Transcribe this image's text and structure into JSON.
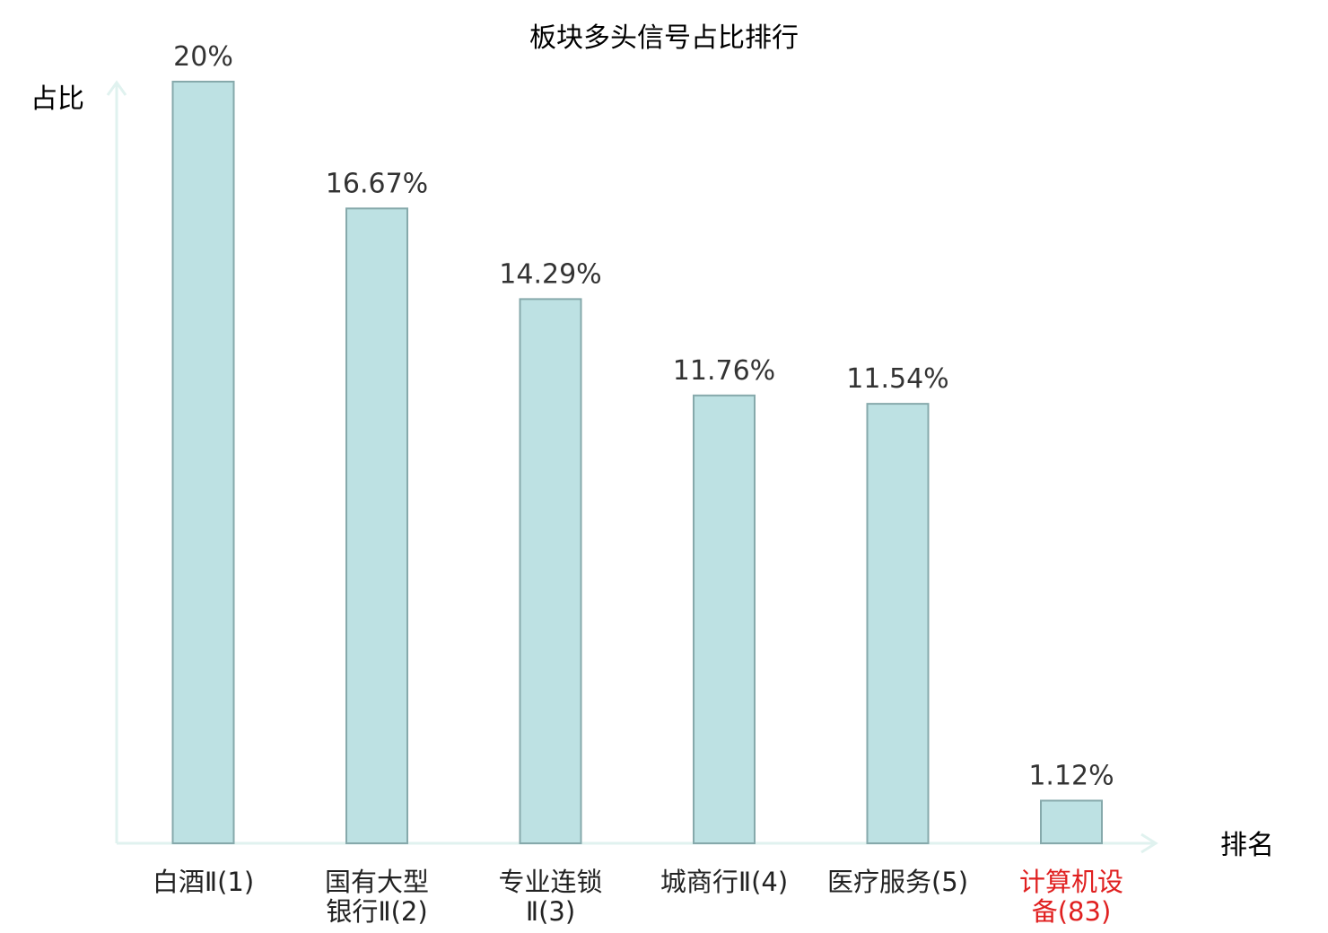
{
  "chart_data": {
    "type": "bar",
    "title": "板块多头信号占比排行",
    "ylabel": "占比",
    "xlabel": "排名",
    "categories": [
      [
        "白酒Ⅱ(1)"
      ],
      [
        "国有大型",
        "银行Ⅱ(2)"
      ],
      [
        "专业连锁",
        "Ⅱ(3)"
      ],
      [
        "城商行Ⅱ(4)"
      ],
      [
        "医疗服务(5)"
      ],
      [
        "计算机设",
        "备(83)"
      ]
    ],
    "values": [
      20,
      16.67,
      14.29,
      11.76,
      11.54,
      1.12
    ],
    "value_labels": [
      "20%",
      "16.67%",
      "14.29%",
      "11.76%",
      "11.54%",
      "1.12%"
    ],
    "highlight_index": 5,
    "ylim": [
      0,
      20
    ],
    "grid": false,
    "colors": {
      "bar_fill": "#bde1e3",
      "bar_stroke": "#86a9ab",
      "axis": "#e0f2ef",
      "highlight_text": "#e02020",
      "text": "#222222"
    }
  }
}
